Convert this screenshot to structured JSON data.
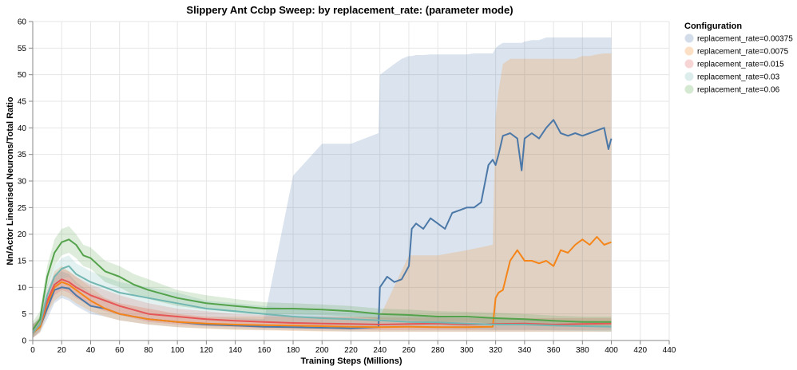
{
  "chart_data": {
    "type": "line",
    "title": "Slippery Ant Ccbp Sweep: by replacement_rate: (parameter mode)",
    "xlabel": "Training Steps (Millions)",
    "ylabel": "Nn/Actor Linearised Neurons/Total Ratio",
    "xlim": [
      0,
      440
    ],
    "ylim": [
      0,
      60
    ],
    "x_ticks": [
      0,
      20,
      40,
      60,
      80,
      100,
      120,
      140,
      160,
      180,
      200,
      220,
      240,
      260,
      280,
      300,
      320,
      340,
      360,
      380,
      400,
      420,
      440
    ],
    "y_ticks": [
      0,
      5,
      10,
      15,
      20,
      25,
      30,
      35,
      40,
      45,
      50,
      55,
      60
    ],
    "grid": true,
    "legend": {
      "title": "Configuration",
      "placement": "right"
    },
    "series": [
      {
        "name": "replacement_rate=0.00375",
        "color": "#4c78a8",
        "x": [
          0,
          5,
          10,
          15,
          20,
          25,
          30,
          40,
          50,
          60,
          80,
          100,
          120,
          140,
          160,
          180,
          200,
          220,
          239,
          240,
          245,
          250,
          255,
          260,
          262,
          265,
          270,
          275,
          280,
          285,
          290,
          295,
          300,
          305,
          310,
          315,
          318,
          320,
          322,
          325,
          330,
          335,
          338,
          340,
          345,
          350,
          355,
          360,
          365,
          370,
          375,
          380,
          385,
          390,
          395,
          398,
          400
        ],
        "y": [
          1.5,
          2.5,
          6,
          9.5,
          10,
          9.8,
          8.5,
          6.5,
          6,
          5,
          4,
          3.5,
          3,
          2.8,
          2.6,
          2.5,
          2.4,
          2.3,
          2.5,
          10,
          12,
          11,
          11.5,
          14,
          21,
          22,
          21,
          23,
          22,
          21,
          24,
          24.5,
          25,
          25,
          26,
          33,
          34,
          33,
          35,
          38.5,
          39,
          38,
          32,
          38,
          39,
          38,
          40,
          41.5,
          39,
          38.5,
          39,
          38.5,
          39,
          39.5,
          40,
          36,
          38
        ],
        "band_upper": [
          3,
          4,
          8,
          12,
          13,
          12.5,
          11,
          9,
          8,
          7,
          6,
          5,
          4.5,
          4.2,
          4,
          31,
          37,
          37,
          39,
          50,
          51,
          52,
          53,
          53.5,
          53.5,
          53.7,
          53.7,
          53.8,
          53.8,
          53.8,
          53.8,
          53.8,
          53.8,
          54,
          54,
          54,
          54,
          55,
          55.5,
          56,
          56,
          56,
          56,
          56.2,
          56.5,
          56.5,
          57,
          57,
          57,
          57,
          57,
          57,
          57,
          57,
          57,
          57,
          57
        ],
        "band_lower": [
          0.5,
          1.5,
          4,
          7,
          8,
          7.5,
          6.5,
          5,
          4.5,
          3.8,
          3,
          2.5,
          2.3,
          2.1,
          2,
          1.9,
          1.8,
          1.7,
          1.7,
          1.7,
          1.7,
          1.7,
          1.7,
          1.7,
          1.7,
          1.7,
          1.7,
          1.7,
          1.7,
          1.7,
          1.7,
          1.7,
          1.7,
          1.7,
          1.7,
          1.7,
          1.7,
          1.7,
          1.7,
          1.7,
          1.7,
          1.7,
          1.7,
          1.7,
          1.7,
          1.7,
          1.7,
          1.7,
          1.7,
          1.7,
          1.7,
          1.7,
          1.7,
          1.7,
          1.7,
          1.7,
          1.7
        ]
      },
      {
        "name": "replacement_rate=0.0075",
        "color": "#f58518",
        "x": [
          0,
          5,
          10,
          15,
          20,
          25,
          30,
          40,
          50,
          60,
          80,
          100,
          120,
          140,
          160,
          180,
          200,
          220,
          240,
          260,
          280,
          300,
          318,
          320,
          322,
          325,
          330,
          335,
          340,
          345,
          350,
          355,
          360,
          365,
          370,
          375,
          380,
          385,
          390,
          395,
          400
        ],
        "y": [
          1.5,
          2.5,
          7,
          10,
          11,
          10.5,
          9.5,
          7.5,
          6,
          5,
          4,
          3.5,
          3.2,
          3,
          2.9,
          2.8,
          2.7,
          2.6,
          2.5,
          2.6,
          2.5,
          2.5,
          2.6,
          8,
          9,
          9.5,
          15,
          17,
          15,
          15,
          14.5,
          15,
          14,
          17,
          16.5,
          18,
          19,
          18,
          19.5,
          18,
          18.5
        ],
        "band_upper": [
          3,
          4,
          9,
          13,
          14,
          13,
          12,
          10,
          8,
          7,
          6,
          5,
          4.5,
          4.5,
          4.5,
          4.5,
          4.5,
          4.5,
          4.5,
          16,
          16,
          17,
          18,
          42,
          47,
          52,
          53,
          53,
          53,
          53,
          53,
          53,
          53,
          53,
          53,
          53,
          53.5,
          53.5,
          53.8,
          54,
          54
        ],
        "band_lower": [
          0.5,
          1.5,
          5,
          7.5,
          8.5,
          8,
          7,
          5.5,
          4.5,
          3.8,
          3,
          2.5,
          2.2,
          2,
          1.9,
          1.8,
          1.7,
          1.7,
          1.6,
          1.6,
          1.6,
          1.6,
          1.6,
          1.6,
          1.6,
          1.6,
          1.6,
          1.6,
          1.6,
          1.6,
          1.6,
          1.6,
          1.6,
          1.6,
          1.6,
          1.6,
          1.6,
          1.6,
          1.6,
          1.6,
          1.6
        ]
      },
      {
        "name": "replacement_rate=0.015",
        "color": "#e45756",
        "x": [
          0,
          5,
          10,
          15,
          20,
          25,
          30,
          40,
          50,
          60,
          80,
          100,
          120,
          140,
          160,
          180,
          200,
          220,
          240,
          260,
          280,
          300,
          320,
          340,
          360,
          380,
          400
        ],
        "y": [
          1.5,
          3,
          7.5,
          10.5,
          11.5,
          11,
          10,
          8.5,
          7.5,
          6.5,
          5,
          4.5,
          4,
          3.7,
          3.5,
          3.3,
          3.2,
          3.1,
          3,
          3.1,
          3.2,
          3,
          3.1,
          3.2,
          3,
          3.1,
          3.2
        ],
        "band_upper": [
          3,
          4.5,
          9.5,
          12.5,
          13.5,
          13,
          12,
          10.5,
          9.5,
          8.5,
          7,
          6,
          5.5,
          5,
          4.8,
          4.6,
          4.5,
          4.4,
          4.3,
          4.3,
          4.3,
          4.2,
          4.2,
          4.2,
          4.2,
          4.2,
          4.2
        ],
        "band_lower": [
          0.5,
          1.8,
          5.5,
          8.5,
          9.5,
          9,
          8,
          6.5,
          5.5,
          4.8,
          3.5,
          3,
          2.7,
          2.5,
          2.3,
          2.2,
          2.1,
          2,
          2,
          2,
          2,
          2,
          2,
          2,
          2,
          2,
          2
        ]
      },
      {
        "name": "replacement_rate=0.03",
        "color": "#72b7b2",
        "x": [
          0,
          5,
          10,
          15,
          20,
          25,
          30,
          40,
          50,
          60,
          80,
          100,
          120,
          140,
          160,
          180,
          200,
          220,
          240,
          260,
          280,
          300,
          320,
          340,
          360,
          380,
          400
        ],
        "y": [
          1.5,
          3,
          8.5,
          12,
          13.5,
          14,
          12.5,
          11,
          10,
          9,
          8,
          7,
          6,
          5.5,
          5,
          4.5,
          4.2,
          4,
          3.8,
          3.5,
          3.4,
          3.2,
          3,
          3,
          2.8,
          2.7,
          2.6
        ],
        "band_upper": [
          3,
          4.5,
          10.5,
          14,
          15.5,
          16,
          14.5,
          13,
          12,
          11,
          10,
          9,
          7.5,
          7,
          6.5,
          6,
          5.5,
          5.2,
          5,
          4.7,
          4.5,
          4.3,
          4.1,
          4,
          3.8,
          3.7,
          3.6
        ],
        "band_lower": [
          0.5,
          1.8,
          6.5,
          10,
          11.5,
          12,
          10.5,
          9,
          8,
          7,
          6,
          5,
          4.5,
          4,
          3.6,
          3.2,
          3,
          2.8,
          2.6,
          2.4,
          2.3,
          2.2,
          2,
          2,
          1.9,
          1.8,
          1.7
        ]
      },
      {
        "name": "replacement_rate=0.06",
        "color": "#54a24b",
        "x": [
          0,
          5,
          10,
          15,
          20,
          25,
          30,
          35,
          40,
          50,
          60,
          70,
          80,
          100,
          120,
          140,
          160,
          180,
          200,
          220,
          240,
          260,
          280,
          300,
          320,
          340,
          360,
          380,
          400
        ],
        "y": [
          2,
          4,
          12,
          16.5,
          18.5,
          19,
          18,
          16,
          15.5,
          13,
          12,
          10.5,
          9.5,
          8,
          7,
          6.5,
          6,
          6,
          5.8,
          5.5,
          5,
          4.8,
          4.5,
          4.5,
          4.2,
          4,
          3.7,
          3.5,
          3.5
        ],
        "band_upper": [
          3.5,
          5.5,
          14,
          19,
          21,
          21.5,
          20,
          18,
          17.5,
          15,
          14,
          12.5,
          11.5,
          9.5,
          8.5,
          7.8,
          7.2,
          7,
          6.8,
          6.5,
          6,
          5.8,
          5.5,
          5.4,
          5.2,
          5,
          4.7,
          4.5,
          4.5
        ],
        "band_lower": [
          0.8,
          2.5,
          10,
          14,
          16,
          16.5,
          15.5,
          14,
          13.5,
          11,
          10,
          8.5,
          7.8,
          6.5,
          5.8,
          5.3,
          4.9,
          4.9,
          4.8,
          4.5,
          4,
          3.8,
          3.5,
          3.5,
          3.2,
          3,
          2.8,
          2.6,
          2.6
        ]
      }
    ]
  }
}
